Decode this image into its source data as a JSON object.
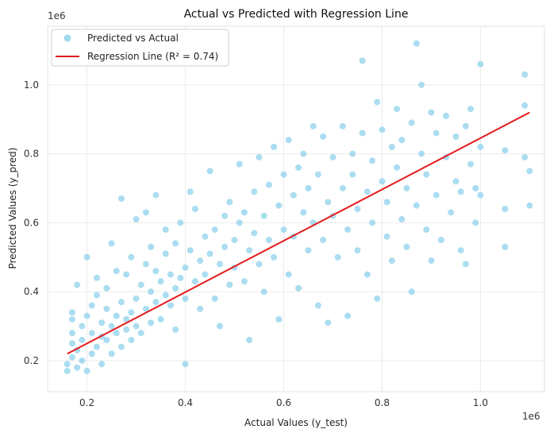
{
  "chart_data": {
    "type": "scatter",
    "title": "Actual vs Predicted with Regression Line",
    "xlabel": "Actual Values (y_test)",
    "ylabel": "Predicted Values (y_pred)",
    "x_offset_label": "1e6",
    "y_offset_label": "1e6",
    "xlim": [
      0.12,
      1.13
    ],
    "ylim": [
      0.11,
      1.17
    ],
    "x_ticks": [
      "0.2",
      "0.4",
      "0.6",
      "0.8",
      "1.0"
    ],
    "y_ticks": [
      "0.2",
      "0.4",
      "0.6",
      "0.8",
      "1.0"
    ],
    "grid": true,
    "legend_position": "upper-left",
    "series": [
      {
        "name": "Predicted vs Actual",
        "kind": "scatter",
        "color": "#87ceeb",
        "points": [
          [
            0.16,
            0.17
          ],
          [
            0.16,
            0.19
          ],
          [
            0.17,
            0.21
          ],
          [
            0.17,
            0.25
          ],
          [
            0.17,
            0.28
          ],
          [
            0.17,
            0.32
          ],
          [
            0.17,
            0.34
          ],
          [
            0.18,
            0.42
          ],
          [
            0.18,
            0.18
          ],
          [
            0.18,
            0.23
          ],
          [
            0.19,
            0.2
          ],
          [
            0.19,
            0.26
          ],
          [
            0.19,
            0.3
          ],
          [
            0.2,
            0.33
          ],
          [
            0.2,
            0.5
          ],
          [
            0.2,
            0.17
          ],
          [
            0.21,
            0.22
          ],
          [
            0.21,
            0.28
          ],
          [
            0.21,
            0.36
          ],
          [
            0.22,
            0.24
          ],
          [
            0.22,
            0.39
          ],
          [
            0.22,
            0.44
          ],
          [
            0.23,
            0.19
          ],
          [
            0.23,
            0.27
          ],
          [
            0.23,
            0.31
          ],
          [
            0.24,
            0.26
          ],
          [
            0.24,
            0.35
          ],
          [
            0.24,
            0.41
          ],
          [
            0.25,
            0.22
          ],
          [
            0.25,
            0.3
          ],
          [
            0.25,
            0.54
          ],
          [
            0.26,
            0.28
          ],
          [
            0.26,
            0.33
          ],
          [
            0.26,
            0.46
          ],
          [
            0.27,
            0.67
          ],
          [
            0.27,
            0.24
          ],
          [
            0.27,
            0.37
          ],
          [
            0.28,
            0.29
          ],
          [
            0.28,
            0.32
          ],
          [
            0.28,
            0.45
          ],
          [
            0.29,
            0.26
          ],
          [
            0.29,
            0.34
          ],
          [
            0.29,
            0.5
          ],
          [
            0.3,
            0.3
          ],
          [
            0.3,
            0.38
          ],
          [
            0.3,
            0.61
          ],
          [
            0.31,
            0.28
          ],
          [
            0.31,
            0.42
          ],
          [
            0.32,
            0.35
          ],
          [
            0.32,
            0.48
          ],
          [
            0.32,
            0.63
          ],
          [
            0.33,
            0.31
          ],
          [
            0.33,
            0.4
          ],
          [
            0.33,
            0.53
          ],
          [
            0.34,
            0.37
          ],
          [
            0.34,
            0.46
          ],
          [
            0.34,
            0.68
          ],
          [
            0.35,
            0.32
          ],
          [
            0.35,
            0.43
          ],
          [
            0.36,
            0.39
          ],
          [
            0.36,
            0.51
          ],
          [
            0.36,
            0.58
          ],
          [
            0.37,
            0.36
          ],
          [
            0.37,
            0.45
          ],
          [
            0.38,
            0.41
          ],
          [
            0.38,
            0.54
          ],
          [
            0.38,
            0.29
          ],
          [
            0.39,
            0.44
          ],
          [
            0.39,
            0.6
          ],
          [
            0.4,
            0.47
          ],
          [
            0.4,
            0.19
          ],
          [
            0.4,
            0.38
          ],
          [
            0.41,
            0.69
          ],
          [
            0.41,
            0.52
          ],
          [
            0.42,
            0.43
          ],
          [
            0.42,
            0.64
          ],
          [
            0.43,
            0.49
          ],
          [
            0.43,
            0.35
          ],
          [
            0.44,
            0.56
          ],
          [
            0.44,
            0.45
          ],
          [
            0.45,
            0.75
          ],
          [
            0.45,
            0.51
          ],
          [
            0.46,
            0.38
          ],
          [
            0.46,
            0.58
          ],
          [
            0.47,
            0.48
          ],
          [
            0.47,
            0.3
          ],
          [
            0.48,
            0.62
          ],
          [
            0.48,
            0.53
          ],
          [
            0.49,
            0.42
          ],
          [
            0.49,
            0.66
          ],
          [
            0.5,
            0.55
          ],
          [
            0.5,
            0.47
          ],
          [
            0.51,
            0.77
          ],
          [
            0.51,
            0.6
          ],
          [
            0.52,
            0.43
          ],
          [
            0.52,
            0.63
          ],
          [
            0.53,
            0.52
          ],
          [
            0.53,
            0.26
          ],
          [
            0.54,
            0.69
          ],
          [
            0.54,
            0.57
          ],
          [
            0.55,
            0.48
          ],
          [
            0.55,
            0.79
          ],
          [
            0.56,
            0.62
          ],
          [
            0.56,
            0.4
          ],
          [
            0.57,
            0.71
          ],
          [
            0.57,
            0.55
          ],
          [
            0.58,
            0.82
          ],
          [
            0.58,
            0.5
          ],
          [
            0.59,
            0.65
          ],
          [
            0.59,
            0.32
          ],
          [
            0.6,
            0.74
          ],
          [
            0.6,
            0.58
          ],
          [
            0.61,
            0.84
          ],
          [
            0.61,
            0.45
          ],
          [
            0.62,
            0.68
          ],
          [
            0.62,
            0.56
          ],
          [
            0.63,
            0.76
          ],
          [
            0.63,
            0.41
          ],
          [
            0.64,
            0.63
          ],
          [
            0.64,
            0.8
          ],
          [
            0.65,
            0.52
          ],
          [
            0.65,
            0.7
          ],
          [
            0.66,
            0.88
          ],
          [
            0.66,
            0.6
          ],
          [
            0.67,
            0.36
          ],
          [
            0.67,
            0.74
          ],
          [
            0.68,
            0.55
          ],
          [
            0.68,
            0.85
          ],
          [
            0.69,
            0.66
          ],
          [
            0.69,
            0.31
          ],
          [
            0.7,
            0.79
          ],
          [
            0.7,
            0.62
          ],
          [
            0.71,
            0.5
          ],
          [
            0.72,
            0.7
          ],
          [
            0.72,
            0.88
          ],
          [
            0.73,
            0.58
          ],
          [
            0.73,
            0.33
          ],
          [
            0.74,
            0.74
          ],
          [
            0.74,
            0.8
          ],
          [
            0.75,
            0.64
          ],
          [
            0.75,
            0.52
          ],
          [
            0.76,
            0.86
          ],
          [
            0.76,
            1.07
          ],
          [
            0.77,
            0.69
          ],
          [
            0.77,
            0.45
          ],
          [
            0.78,
            0.78
          ],
          [
            0.78,
            0.6
          ],
          [
            0.79,
            0.95
          ],
          [
            0.79,
            0.38
          ],
          [
            0.8,
            0.72
          ],
          [
            0.8,
            0.87
          ],
          [
            0.81,
            0.56
          ],
          [
            0.81,
            0.66
          ],
          [
            0.82,
            0.82
          ],
          [
            0.82,
            0.49
          ],
          [
            0.83,
            0.76
          ],
          [
            0.83,
            0.93
          ],
          [
            0.84,
            0.61
          ],
          [
            0.84,
            0.84
          ],
          [
            0.85,
            0.7
          ],
          [
            0.85,
            0.53
          ],
          [
            0.86,
            0.89
          ],
          [
            0.86,
            0.4
          ],
          [
            0.87,
            0.65
          ],
          [
            0.87,
            1.12
          ],
          [
            0.88,
            0.8
          ],
          [
            0.88,
            1.0
          ],
          [
            0.89,
            0.58
          ],
          [
            0.89,
            0.74
          ],
          [
            0.9,
            0.92
          ],
          [
            0.9,
            0.49
          ],
          [
            0.91,
            0.68
          ],
          [
            0.91,
            0.86
          ],
          [
            0.92,
            0.55
          ],
          [
            0.93,
            0.79
          ],
          [
            0.93,
            0.91
          ],
          [
            0.94,
            0.63
          ],
          [
            0.95,
            0.72
          ],
          [
            0.95,
            0.85
          ],
          [
            0.96,
            0.52
          ],
          [
            0.96,
            0.69
          ],
          [
            0.97,
            0.88
          ],
          [
            0.97,
            0.48
          ],
          [
            0.98,
            0.77
          ],
          [
            0.98,
            0.93
          ],
          [
            0.99,
            0.6
          ],
          [
            0.99,
            0.7
          ],
          [
            1.0,
            0.82
          ],
          [
            1.0,
            1.06
          ],
          [
            1.0,
            0.68
          ],
          [
            1.05,
            0.81
          ],
          [
            1.05,
            0.64
          ],
          [
            1.05,
            0.53
          ],
          [
            1.09,
            1.03
          ],
          [
            1.09,
            0.79
          ],
          [
            1.1,
            0.75
          ],
          [
            1.1,
            0.65
          ],
          [
            1.09,
            0.94
          ]
        ]
      },
      {
        "name": "Regression Line (R² = 0.74)",
        "kind": "line",
        "color": "#e41a1c",
        "x": [
          0.16,
          1.1
        ],
        "y": [
          0.22,
          0.92
        ]
      }
    ]
  }
}
